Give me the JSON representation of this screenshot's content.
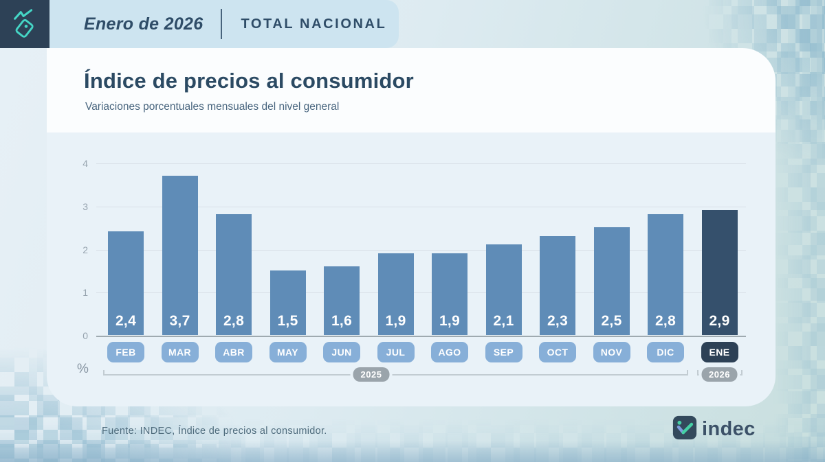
{
  "header": {
    "period": "Enero de 2026",
    "scope": "TOTAL NACIONAL"
  },
  "title": "Índice de precios al consumidor",
  "subtitle": "Variaciones porcentuales mensuales del nivel general",
  "chart_data": {
    "type": "bar",
    "categories": [
      "FEB",
      "MAR",
      "ABR",
      "MAY",
      "JUN",
      "JUL",
      "AGO",
      "SEP",
      "OCT",
      "NOV",
      "DIC",
      "ENE"
    ],
    "values": [
      2.4,
      3.7,
      2.8,
      1.5,
      1.6,
      1.9,
      1.9,
      2.1,
      2.3,
      2.5,
      2.8,
      2.9
    ],
    "value_labels": [
      "2,4",
      "3,7",
      "2,8",
      "1,5",
      "1,6",
      "1,9",
      "1,9",
      "2,1",
      "2,3",
      "2,5",
      "2,8",
      "2,9"
    ],
    "highlight_index": 11,
    "y_ticks": [
      0,
      1,
      2,
      3,
      4
    ],
    "ylim": [
      0,
      4
    ],
    "grid": true,
    "unit_label": "%",
    "xlabel": "",
    "ylabel": "%",
    "legend": "none",
    "year_groups": [
      {
        "label": "2025",
        "from": 0,
        "to": 10
      },
      {
        "label": "2026",
        "from": 11,
        "to": 11
      }
    ],
    "colors": {
      "bar": "#5f8cb7",
      "bar_highlight": "#35506c",
      "month_pill": "#87afd8",
      "month_pill_highlight": "#2d4156",
      "year_pill": "#9aa4ab"
    }
  },
  "icons": {
    "brand": "price-tag-trend-icon",
    "logo": "indec-trend-check-icon"
  },
  "footer": {
    "source": "Fuente: INDEC, Índice de precios al consumidor.",
    "logo_text": "indec"
  }
}
